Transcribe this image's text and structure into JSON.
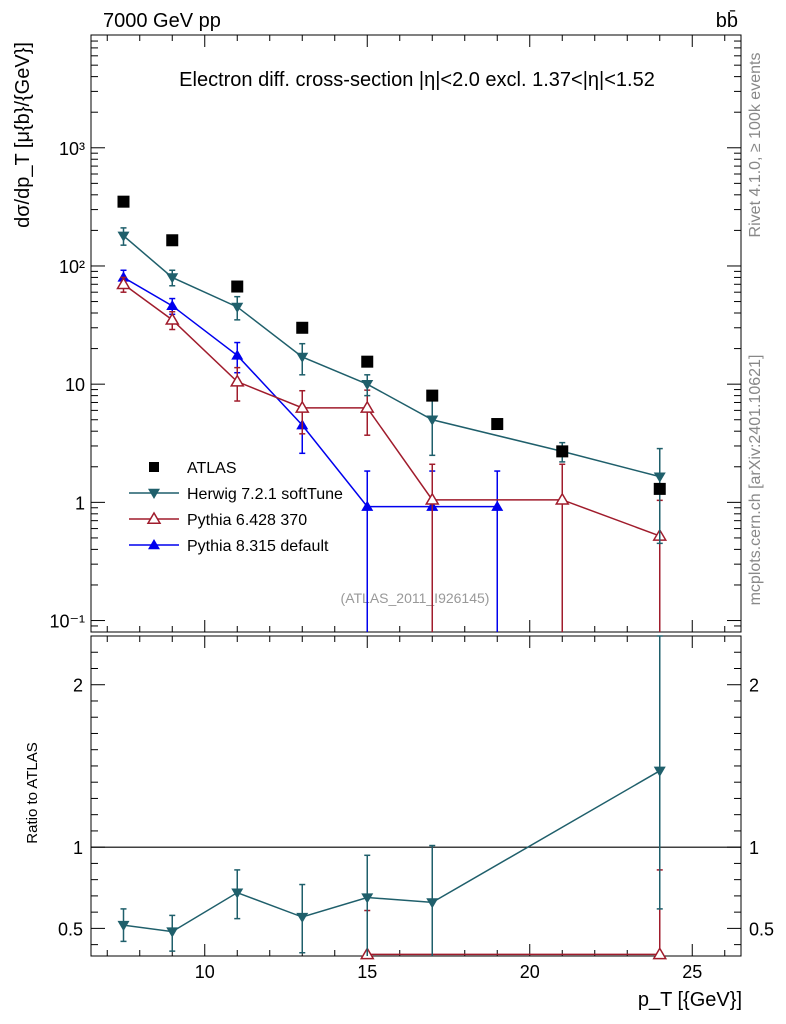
{
  "header": {
    "left": "7000 GeV pp",
    "right": "bb̄",
    "side_top": "Rivet 4.1.0, ≥ 100k events",
    "side_bottom": "mcplots.cern.ch [arXiv:2401.10621]"
  },
  "chart_data": [
    {
      "type": "line",
      "panel": "main",
      "title": "Electron diff. cross-section |η|<2.0 excl. 1.37<|η|<1.52",
      "watermark": "(ATLAS_2011_I926145)",
      "xlabel": "p_T [{GeV}]",
      "ylabel": "dσ/dp_T [μ{b}/{GeV}]",
      "yscale": "log",
      "xlim": [
        6.5,
        26.5
      ],
      "ylim": [
        0.08,
        9000
      ],
      "yticks": [
        {
          "value": 0.1,
          "label": "10⁻¹"
        },
        {
          "value": 1,
          "label": "1"
        },
        {
          "value": 10,
          "label": "10"
        },
        {
          "value": 100,
          "label": "10²"
        },
        {
          "value": 1000,
          "label": "10³"
        }
      ],
      "legend": {
        "position": "middle-left"
      },
      "series": [
        {
          "name": "ATLAS",
          "marker": "square",
          "color": "#000000",
          "line": false,
          "x": [
            7.5,
            9,
            11,
            13,
            15,
            17,
            19,
            21,
            24
          ],
          "y": [
            350,
            165,
            67,
            30,
            15.5,
            8,
            4.6,
            2.7,
            1.3
          ],
          "err_lo": [
            0,
            0,
            0,
            0,
            0,
            0,
            0,
            0,
            0
          ],
          "err_hi": [
            0,
            0,
            0,
            0,
            0,
            0,
            0,
            0,
            0
          ]
        },
        {
          "name": "Herwig 7.2.1 softTune",
          "marker": "triangle-down",
          "color": "#1f5f6b",
          "line": true,
          "x": [
            7.5,
            9,
            11,
            13,
            15,
            17,
            21,
            24
          ],
          "y": [
            180,
            80,
            45,
            17,
            10,
            5,
            2.7,
            1.65
          ],
          "err_lo": [
            30,
            12,
            10,
            5,
            2,
            2.5,
            0.5,
            1.2
          ],
          "err_hi": [
            30,
            12,
            10,
            5,
            2,
            2.5,
            0.5,
            1.2
          ]
        },
        {
          "name": "Pythia 6.428 370",
          "marker": "triangle-up-open",
          "color": "#a01c2c",
          "line": true,
          "x": [
            7.5,
            9,
            11,
            13,
            15,
            17,
            21,
            24
          ],
          "y": [
            70,
            35,
            10.5,
            6.3,
            6.3,
            1.05,
            1.05,
            0.52
          ],
          "err_lo": [
            10,
            6,
            3.3,
            2.5,
            2.6,
            1.04,
            1.04,
            0.52
          ],
          "err_hi": [
            10,
            6,
            3.3,
            2.5,
            2.6,
            1.05,
            1.05,
            0.52
          ]
        },
        {
          "name": "Pythia 8.315 default",
          "marker": "triangle-up",
          "color": "#0000ee",
          "line": true,
          "x": [
            7.5,
            9,
            11,
            13,
            15,
            17,
            19
          ],
          "y": [
            80,
            46,
            17.5,
            4.5,
            0.92,
            0.92,
            0.92
          ],
          "err_lo": [
            12,
            7,
            5,
            1.9,
            0.91,
            0.91,
            0.91
          ],
          "err_hi": [
            12,
            7,
            5,
            1.9,
            0.92,
            0.92,
            0.92
          ]
        }
      ]
    },
    {
      "type": "line",
      "panel": "ratio",
      "xlabel": "p_T [{GeV}]",
      "ylabel": "Ratio to ATLAS",
      "xlim": [
        6.5,
        26.5
      ],
      "ylim": [
        0.33,
        2.3
      ],
      "xticks": [
        10,
        15,
        20,
        25
      ],
      "yticks": [
        0.5,
        1,
        2
      ],
      "reference_line": 1,
      "series": [
        {
          "name": "Herwig 7.2.1 softTune",
          "marker": "triangle-down",
          "color": "#1f5f6b",
          "x": [
            7.5,
            9,
            11,
            13,
            15,
            17,
            24
          ],
          "y": [
            0.52,
            0.48,
            0.72,
            0.57,
            0.69,
            0.66,
            1.47
          ],
          "err_lo": [
            0.1,
            0.12,
            0.16,
            0.22,
            0.36,
            0.33,
            0.85
          ],
          "err_hi": [
            0.1,
            0.1,
            0.14,
            0.2,
            0.26,
            0.35,
            0.85
          ]
        },
        {
          "name": "Pythia 6.428 370",
          "marker": "triangle-up-open",
          "color": "#a01c2c",
          "x": [
            15,
            24
          ],
          "y": [
            0.34,
            0.34
          ],
          "err_lo": [
            0,
            0
          ],
          "err_hi": [
            0.27,
            0.52
          ]
        }
      ]
    }
  ]
}
